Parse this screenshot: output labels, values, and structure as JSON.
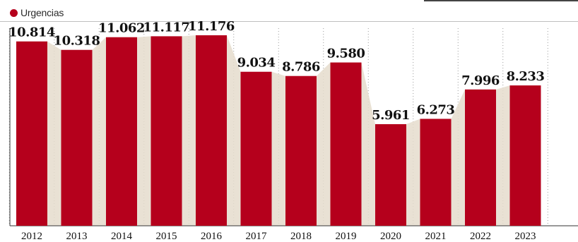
{
  "chart_data": {
    "type": "bar",
    "categories": [
      "2012",
      "2013",
      "2014",
      "2015",
      "2016",
      "2017",
      "2018",
      "2019",
      "2020",
      "2021",
      "2022",
      "2023"
    ],
    "series": [
      {
        "name": "Urgencias",
        "color": "#b5001c",
        "values": [
          10814,
          10318,
          11062,
          11117,
          11176,
          9034,
          8786,
          9580,
          5961,
          6273,
          7996,
          8233
        ]
      }
    ],
    "data_labels": [
      "10.814",
      "10.318",
      "11.062",
      "11.117",
      "11.176",
      "9.034",
      "8.786",
      "9.580",
      "5.961",
      "6.273",
      "7.996",
      "8.233"
    ],
    "ylim": [
      0,
      12500
    ],
    "legend": {
      "label": "Urgencias",
      "placement": "top-left"
    },
    "grid": "vertical-dotted",
    "area_fill_color": "#e5dccd",
    "title": "",
    "xlabel": "",
    "ylabel": ""
  }
}
